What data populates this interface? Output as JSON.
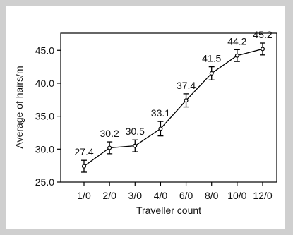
{
  "chart_data": {
    "type": "line",
    "title": "",
    "xlabel": "Traveller count",
    "ylabel": "Average of hairs/m",
    "categories": [
      "1/0",
      "2/0",
      "3/0",
      "4/0",
      "6/0",
      "8/0",
      "10/0",
      "12/0"
    ],
    "series": [
      {
        "values": [
          27.4,
          30.2,
          30.5,
          33.1,
          37.4,
          41.5,
          44.2,
          45.2
        ],
        "error": [
          0.9,
          0.9,
          0.9,
          1.1,
          1.0,
          1.0,
          0.9,
          0.9
        ]
      }
    ],
    "data_labels": [
      "27.4",
      "30.2",
      "30.5",
      "33.1",
      "37.4",
      "41.5",
      "44.2",
      "45.2"
    ],
    "ylim": [
      25.0,
      47.6
    ],
    "yticks": [
      25.0,
      30.0,
      35.0,
      40.0,
      45.0
    ],
    "ytick_labels": [
      "25.0",
      "30.0",
      "35.0",
      "40.0",
      "45.0"
    ],
    "grid": false,
    "marker": "open-circle",
    "line_color": "#000000"
  }
}
